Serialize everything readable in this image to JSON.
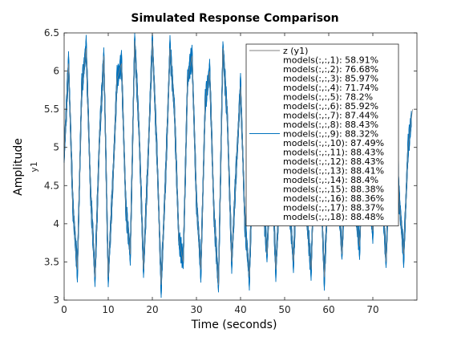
{
  "chart_data": {
    "type": "line",
    "title": "Simulated Response Comparison",
    "xlabel": "Time (seconds)",
    "ylabel": "Amplitude",
    "channel_label": "y1",
    "xlim": [
      0,
      80
    ],
    "ylim": [
      3,
      6.5
    ],
    "x_ticks": [
      "0",
      "10",
      "20",
      "30",
      "40",
      "50",
      "60",
      "70"
    ],
    "y_ticks": [
      "3",
      "3.5",
      "4",
      "4.5",
      "5",
      "5.5",
      "6",
      "6.5"
    ],
    "grid": false,
    "legend_position": "top-right",
    "series": [
      {
        "name": "z (y1)",
        "color": "#808080",
        "x": [
          0,
          1,
          2,
          3,
          4,
          5,
          6,
          7,
          8,
          9,
          10,
          11,
          12,
          13,
          14,
          15,
          16,
          17,
          18,
          19,
          20,
          21,
          22,
          23,
          24,
          25,
          26,
          27,
          28,
          29,
          30,
          31,
          32,
          33,
          34,
          35,
          36,
          37,
          38,
          39,
          40,
          41,
          42,
          43,
          44,
          45,
          46,
          47,
          48,
          49,
          50,
          51,
          52,
          53,
          54,
          55,
          56,
          57,
          58,
          59,
          60,
          61,
          62,
          63,
          64,
          65,
          66,
          67,
          68,
          69,
          70,
          71,
          72,
          73,
          74,
          75,
          76,
          77,
          78,
          79
        ],
        "y": [
          4.9,
          6.1,
          4.2,
          3.4,
          5.8,
          6.3,
          4.4,
          3.3,
          5.1,
          6.2,
          3.3,
          4.5,
          5.9,
          6.1,
          4.2,
          3.6,
          6.4,
          5.2,
          3.4,
          4.8,
          6.4,
          5.0,
          3.2,
          4.6,
          6.3,
          5.5,
          3.8,
          3.5,
          5.9,
          6.2,
          4.3,
          3.4,
          5.6,
          6.0,
          4.1,
          3.2,
          6.3,
          5.4,
          3.5,
          4.7,
          5.8,
          4.0,
          3.3,
          5.2,
          5.9,
          4.4,
          3.6,
          4.9,
          3.4,
          4.6,
          5.8,
          4.3,
          3.5,
          5.0,
          5.6,
          4.1,
          3.4,
          5.3,
          4.8,
          3.3,
          4.7,
          5.7,
          4.6,
          3.6,
          5.1,
          5.5,
          4.2,
          3.7,
          5.4,
          4.4,
          3.9,
          5.6,
          4.6,
          3.5,
          5.2,
          5.7,
          4.3,
          3.6,
          5.0,
          5.5
        ]
      },
      {
        "name": "models(:,:,1): 58.91%",
        "color": "#0072BD"
      },
      {
        "name": "models(:,:,2): 76.68%",
        "color": "#0072BD"
      },
      {
        "name": "models(:,:,3): 85.97%",
        "color": "#0072BD"
      },
      {
        "name": "models(:,:,4): 71.74%",
        "color": "#0072BD"
      },
      {
        "name": "models(:,:,5): 78.2%",
        "color": "#0072BD"
      },
      {
        "name": "models(:,:,6): 85.92%",
        "color": "#0072BD"
      },
      {
        "name": "models(:,:,7): 87.44%",
        "color": "#0072BD"
      },
      {
        "name": "models(:,:,8): 88.43%",
        "color": "#0072BD"
      },
      {
        "name": "models(:,:,9): 88.32%",
        "color": "#0072BD"
      },
      {
        "name": "models(:,:,10): 87.49%",
        "color": "#0072BD"
      },
      {
        "name": "models(:,:,11): 88.43%",
        "color": "#0072BD"
      },
      {
        "name": "models(:,:,12): 88.43%",
        "color": "#0072BD"
      },
      {
        "name": "models(:,:,13): 88.41%",
        "color": "#0072BD"
      },
      {
        "name": "models(:,:,14): 88.4%",
        "color": "#0072BD"
      },
      {
        "name": "models(:,:,15): 88.38%",
        "color": "#0072BD"
      },
      {
        "name": "models(:,:,16): 88.36%",
        "color": "#0072BD"
      },
      {
        "name": "models(:,:,17): 88.37%",
        "color": "#0072BD"
      },
      {
        "name": "models(:,:,18): 88.48%",
        "color": "#0072BD"
      }
    ]
  }
}
